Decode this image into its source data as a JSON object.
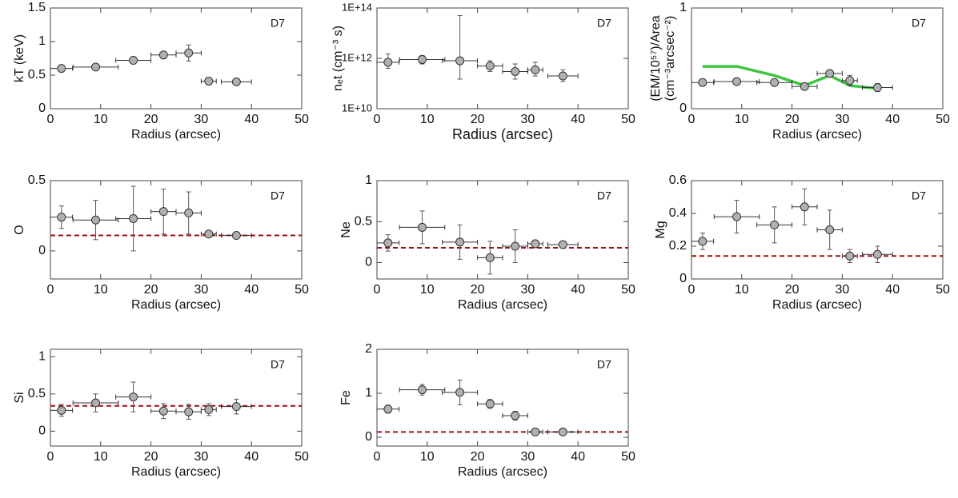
{
  "chart_data": [
    {
      "type": "errorbar",
      "ylabel": [
        "kT (keV)"
      ],
      "annotation": "D7",
      "xlabel": "Radius  (arcsec)",
      "x": [
        2.2,
        9,
        16.5,
        22.5,
        27.5,
        31.5,
        37
      ],
      "xerr": [
        2.2,
        4.5,
        3.5,
        2.5,
        2.5,
        1.5,
        3
      ],
      "values": [
        0.6,
        0.62,
        0.72,
        0.8,
        0.83,
        0.41,
        0.4
      ],
      "yerr": [
        0.03,
        0.03,
        0.05,
        0.05,
        0.12,
        0.05,
        0.03
      ],
      "xlim": [
        0,
        50
      ],
      "xticks": [
        0,
        10,
        20,
        30,
        40,
        50
      ],
      "ylim": [
        0,
        1.5
      ],
      "yticks": [
        0,
        0.5,
        1,
        1.5
      ],
      "color": "#b0b0b0"
    },
    {
      "type": "errorbar",
      "ylabel": [
        "nₑt (cm⁻³ s)"
      ],
      "annotation": "D7",
      "xlabel": "Radius  (arcsec)",
      "log_y": true,
      "x": [
        2.2,
        9,
        16.5,
        22.5,
        27.5,
        31.5,
        37
      ],
      "xerr": [
        2.2,
        4.5,
        3.5,
        2.5,
        2.5,
        1.5,
        3
      ],
      "values": [
        700000000000.0,
        900000000000.0,
        800000000000.0,
        500000000000.0,
        300000000000.0,
        350000000000.0,
        200000000000.0
      ],
      "yerr_minus": [
        300000000000.0,
        300000000000.0,
        650000000000.0,
        200000000000.0,
        150000000000.0,
        150000000000.0,
        80000000000.0
      ],
      "yerr_plus": [
        800000000000.0,
        400000000000.0,
        49200000000000.0,
        300000000000.0,
        300000000000.0,
        350000000000.0,
        150000000000.0
      ],
      "xlim": [
        0,
        50
      ],
      "xticks": [
        0,
        10,
        20,
        30,
        40,
        50
      ],
      "ylim": [
        10000000000.0,
        100000000000000.0
      ],
      "yticks": [
        {
          "value": 10000000000.0,
          "label": "1E+10"
        },
        {
          "value": 1000000000000.0,
          "label": "1E+12"
        },
        {
          "value": 100000000000000.0,
          "label": "1E+14"
        }
      ],
      "color": "#b0b0b0"
    },
    {
      "type": "errorbar",
      "ylabel": [
        "(EM/10⁵⁷)/Area",
        "(cm⁻³arcsec⁻²)"
      ],
      "annotation": "D7",
      "xlabel": "Radius  (arcsec)",
      "x": [
        2.2,
        9,
        16.5,
        22.5,
        27.5,
        31.5,
        37
      ],
      "xerr": [
        2.2,
        4.5,
        3.5,
        2.5,
        2.5,
        1.5,
        3
      ],
      "values": [
        0.26,
        0.27,
        0.26,
        0.22,
        0.35,
        0.28,
        0.21
      ],
      "yerr": [
        0.03,
        0.02,
        0.02,
        0.02,
        0.03,
        0.05,
        0.04
      ],
      "model": {
        "x": [
          2.2,
          9,
          16.5,
          22.5,
          27.5,
          31.5,
          37
        ],
        "values": [
          0.42,
          0.42,
          0.33,
          0.23,
          0.33,
          0.23,
          0.2
        ],
        "color": "#3ec43e"
      },
      "xlim": [
        0,
        50
      ],
      "xticks": [
        0,
        10,
        20,
        30,
        40,
        50
      ],
      "ylim": [
        0,
        1
      ],
      "yticks": [
        0,
        1
      ],
      "color": "#b0b0b0"
    },
    {
      "type": "errorbar",
      "ylabel": [
        "O"
      ],
      "annotation": "D7",
      "xlabel": "Radius  (arcsec)",
      "x": [
        2.2,
        9,
        16.5,
        22.5,
        27.5,
        31.5,
        37
      ],
      "xerr": [
        2.2,
        4.5,
        3.5,
        2.5,
        2.5,
        1.5,
        3
      ],
      "values": [
        0.24,
        0.22,
        0.23,
        0.28,
        0.27,
        0.12,
        0.11
      ],
      "yerr": [
        0.08,
        0.14,
        0.23,
        0.16,
        0.15,
        0.02,
        0.01
      ],
      "ref_line": {
        "value": 0.11,
        "color": "#a01010"
      },
      "xlim": [
        0,
        50
      ],
      "xticks": [
        0,
        10,
        20,
        30,
        40,
        50
      ],
      "ylim": [
        -0.2,
        0.5
      ],
      "yticks": [
        0,
        0.5
      ],
      "color": "#b0b0b0"
    },
    {
      "type": "errorbar",
      "ylabel": [
        "Ne"
      ],
      "annotation": "D7",
      "xlabel": "Radius  (arcsec)",
      "x": [
        2.2,
        9,
        16.5,
        22.5,
        27.5,
        31.5,
        37
      ],
      "xerr": [
        2.2,
        4.5,
        3.5,
        2.5,
        2.5,
        1.5,
        3
      ],
      "values": [
        0.24,
        0.43,
        0.25,
        0.06,
        0.2,
        0.23,
        0.22
      ],
      "yerr": [
        0.1,
        0.2,
        0.21,
        0.2,
        0.2,
        0.03,
        0.02
      ],
      "ref_line": {
        "value": 0.18,
        "color": "#a01010"
      },
      "xlim": [
        0,
        50
      ],
      "xticks": [
        0,
        10,
        20,
        30,
        40,
        50
      ],
      "ylim": [
        -0.2,
        1
      ],
      "yticks": [
        0,
        0.5,
        1
      ],
      "color": "#b0b0b0"
    },
    {
      "type": "errorbar",
      "ylabel": [
        "Mg"
      ],
      "annotation": "D7",
      "xlabel": "Radius  (arcsec)",
      "x": [
        2.2,
        9,
        16.5,
        22.5,
        27.5,
        31.5,
        37
      ],
      "xerr": [
        2.2,
        4.5,
        3.5,
        2.5,
        2.5,
        1.5,
        3
      ],
      "values": [
        0.23,
        0.38,
        0.33,
        0.44,
        0.3,
        0.14,
        0.15
      ],
      "yerr": [
        0.05,
        0.1,
        0.11,
        0.11,
        0.12,
        0.04,
        0.05
      ],
      "ref_line": {
        "value": 0.14,
        "color": "#a01010"
      },
      "xlim": [
        0,
        50
      ],
      "xticks": [
        0,
        10,
        20,
        30,
        40,
        50
      ],
      "ylim": [
        0,
        0.6
      ],
      "yticks": [
        0,
        0.2,
        0.4,
        0.6
      ],
      "color": "#b0b0b0"
    },
    {
      "type": "errorbar",
      "ylabel": [
        "Si"
      ],
      "annotation": "D7",
      "xlabel": "Radius  (arcsec)",
      "x": [
        2.2,
        9,
        16.5,
        22.5,
        27.5,
        31.5,
        37
      ],
      "xerr": [
        2.2,
        4.5,
        3.5,
        2.5,
        2.5,
        1.5,
        3
      ],
      "values": [
        0.28,
        0.38,
        0.46,
        0.27,
        0.26,
        0.29,
        0.33
      ],
      "yerr": [
        0.08,
        0.12,
        0.2,
        0.1,
        0.1,
        0.08,
        0.1
      ],
      "ref_line": {
        "value": 0.34,
        "color": "#a01010"
      },
      "xlim": [
        0,
        50
      ],
      "xticks": [
        0,
        10,
        20,
        30,
        40,
        50
      ],
      "ylim": [
        -0.2,
        1.1
      ],
      "yticks": [
        0,
        0.5,
        1
      ],
      "color": "#b0b0b0"
    },
    {
      "type": "errorbar",
      "ylabel": [
        "Fe"
      ],
      "annotation": "D7",
      "xlabel": "Radius  (arcsec)",
      "x": [
        2.2,
        9,
        16.5,
        22.5,
        27.5,
        31.5,
        37
      ],
      "xerr": [
        2.2,
        4.5,
        3.5,
        2.5,
        2.5,
        1.5,
        3
      ],
      "values": [
        0.64,
        1.08,
        1.02,
        0.76,
        0.49,
        0.12,
        0.12
      ],
      "yerr": [
        0.09,
        0.12,
        0.28,
        0.1,
        0.1,
        0.02,
        0.02
      ],
      "ref_line": {
        "value": 0.12,
        "color": "#a01010"
      },
      "xlim": [
        0,
        50
      ],
      "xticks": [
        0,
        10,
        20,
        30,
        40,
        50
      ],
      "ylim": [
        -0.2,
        2
      ],
      "yticks": [
        0,
        1,
        2
      ],
      "color": "#b0b0b0"
    }
  ]
}
